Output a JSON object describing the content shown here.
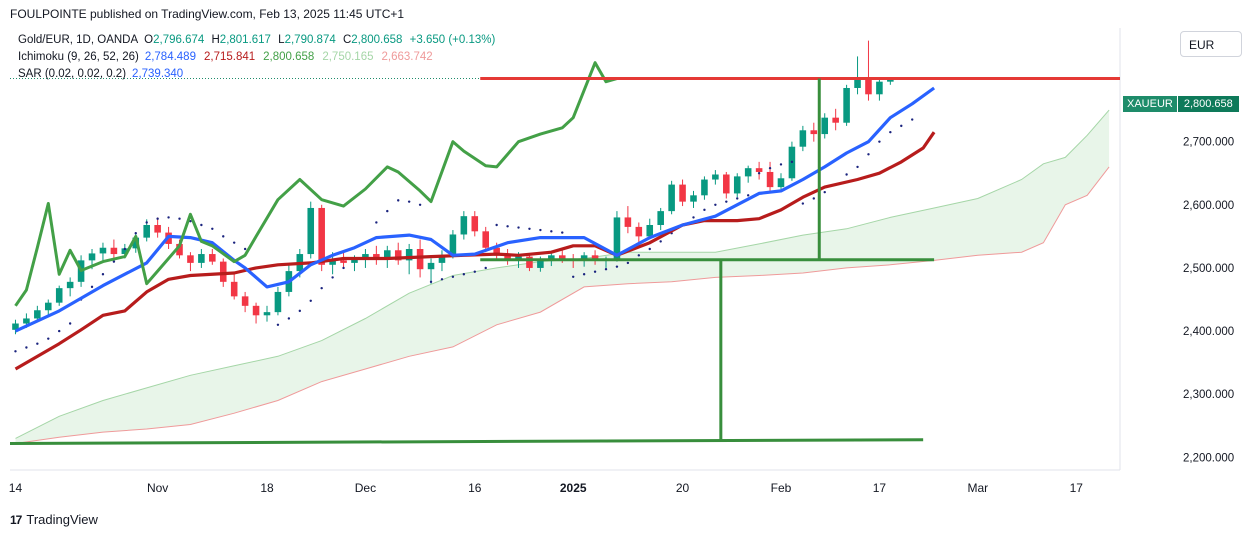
{
  "header": {
    "publisher_line": "FOULPOINTE published on TradingView.com, Feb 13, 2025 11:45 UTC+1"
  },
  "legend": {
    "symbol_line": {
      "name": "Gold/EUR, 1D, OANDA",
      "open_label": "O",
      "open": "2,796.674",
      "high_label": "H",
      "high": "2,801.617",
      "low_label": "L",
      "low": "2,790.874",
      "close_label": "C",
      "close": "2,800.658",
      "change": "+3.650 (+0.13%)"
    },
    "ichimoku": {
      "name": "Ichimoku (9, 26, 52, 26)",
      "values": [
        "2,784.489",
        "2,715.841",
        "2,800.658",
        "2,750.165",
        "2,663.742"
      ]
    },
    "sar": {
      "name": "SAR (0.02, 0.02, 0.2)",
      "value": "2,739.340"
    }
  },
  "currency_button": "EUR",
  "price_tag": {
    "symbol": "XAUEUR",
    "value": "2,800.658"
  },
  "footer": {
    "logo_text": "17",
    "brand": "TradingView"
  },
  "colors": {
    "up": "#089981",
    "down": "#f23645",
    "tenkan": "#2962ff",
    "kijun": "#b71c1c",
    "chikou": "#43a047",
    "span_a": "#a5d6a7",
    "span_b": "#ef9a9a",
    "cloud": "#e8f5e9",
    "sar": "#1a237e",
    "drawing_green": "#388e3c",
    "drawing_red": "#e53935"
  },
  "chart_data": {
    "type": "candlestick",
    "y_axis": {
      "ticks": [
        "2,700.000",
        "2,600.000",
        "2,500.000",
        "2,400.000",
        "2,300.000",
        "2,200.000"
      ],
      "tick_values": [
        2700,
        2600,
        2500,
        2400,
        2300,
        2200
      ],
      "range": [
        2180,
        2880
      ]
    },
    "x_axis": {
      "ticks": [
        "14",
        "Nov",
        "18",
        "Dec",
        "16",
        "2025",
        "20",
        "Feb",
        "17",
        "Mar",
        "17"
      ],
      "tick_bars": [
        0,
        13,
        23,
        32,
        42,
        51,
        61,
        70,
        79,
        88,
        97
      ],
      "bar_range": [
        -0.5,
        101
      ]
    },
    "ohlc": [
      [
        2402,
        2418,
        2395,
        2412
      ],
      [
        2412,
        2428,
        2405,
        2420
      ],
      [
        2420,
        2440,
        2415,
        2433
      ],
      [
        2433,
        2450,
        2425,
        2445
      ],
      [
        2445,
        2472,
        2440,
        2468
      ],
      [
        2468,
        2485,
        2455,
        2478
      ],
      [
        2478,
        2520,
        2470,
        2512
      ],
      [
        2512,
        2530,
        2498,
        2523
      ],
      [
        2523,
        2540,
        2510,
        2532
      ],
      [
        2532,
        2545,
        2514,
        2522
      ],
      [
        2522,
        2538,
        2515,
        2531
      ],
      [
        2531,
        2555,
        2524,
        2548
      ],
      [
        2548,
        2577,
        2542,
        2568
      ],
      [
        2568,
        2580,
        2548,
        2556
      ],
      [
        2556,
        2565,
        2530,
        2538
      ],
      [
        2538,
        2545,
        2515,
        2520
      ],
      [
        2520,
        2525,
        2495,
        2508
      ],
      [
        2508,
        2530,
        2500,
        2522
      ],
      [
        2522,
        2530,
        2505,
        2510
      ],
      [
        2510,
        2515,
        2470,
        2478
      ],
      [
        2478,
        2490,
        2450,
        2455
      ],
      [
        2455,
        2462,
        2430,
        2440
      ],
      [
        2440,
        2445,
        2412,
        2425
      ],
      [
        2425,
        2440,
        2415,
        2430
      ],
      [
        2430,
        2470,
        2425,
        2462
      ],
      [
        2462,
        2505,
        2455,
        2495
      ],
      [
        2495,
        2530,
        2485,
        2522
      ],
      [
        2522,
        2605,
        2515,
        2595
      ],
      [
        2595,
        2600,
        2495,
        2505
      ],
      [
        2505,
        2525,
        2490,
        2512
      ],
      [
        2512,
        2528,
        2500,
        2508
      ],
      [
        2508,
        2520,
        2495,
        2516
      ],
      [
        2516,
        2530,
        2500,
        2522
      ],
      [
        2522,
        2535,
        2505,
        2515
      ],
      [
        2515,
        2535,
        2500,
        2528
      ],
      [
        2528,
        2540,
        2505,
        2512
      ],
      [
        2512,
        2538,
        2490,
        2530
      ],
      [
        2530,
        2545,
        2485,
        2498
      ],
      [
        2498,
        2515,
        2475,
        2508
      ],
      [
        2508,
        2528,
        2495,
        2520
      ],
      [
        2520,
        2560,
        2515,
        2553
      ],
      [
        2553,
        2590,
        2545,
        2582
      ],
      [
        2582,
        2590,
        2550,
        2558
      ],
      [
        2558,
        2565,
        2525,
        2532
      ],
      [
        2532,
        2540,
        2515,
        2522
      ],
      [
        2522,
        2530,
        2505,
        2512
      ],
      [
        2512,
        2525,
        2500,
        2518
      ],
      [
        2518,
        2522,
        2495,
        2500
      ],
      [
        2500,
        2518,
        2494,
        2512
      ],
      [
        2512,
        2524,
        2503,
        2520
      ],
      [
        2520,
        2530,
        2508,
        2515
      ],
      [
        2515,
        2522,
        2500,
        2512
      ],
      [
        2512,
        2525,
        2502,
        2520
      ],
      [
        2520,
        2528,
        2505,
        2512
      ],
      [
        2512,
        2518,
        2500,
        2515
      ],
      [
        2515,
        2590,
        2510,
        2580
      ],
      [
        2580,
        2598,
        2555,
        2565
      ],
      [
        2565,
        2572,
        2540,
        2550
      ],
      [
        2550,
        2578,
        2545,
        2568
      ],
      [
        2568,
        2595,
        2560,
        2590
      ],
      [
        2590,
        2638,
        2585,
        2632
      ],
      [
        2632,
        2640,
        2598,
        2605
      ],
      [
        2605,
        2622,
        2595,
        2615
      ],
      [
        2615,
        2645,
        2608,
        2640
      ],
      [
        2640,
        2655,
        2632,
        2648
      ],
      [
        2648,
        2652,
        2610,
        2618
      ],
      [
        2618,
        2650,
        2612,
        2645
      ],
      [
        2645,
        2662,
        2635,
        2658
      ],
      [
        2658,
        2668,
        2640,
        2652
      ],
      [
        2652,
        2668,
        2618,
        2628
      ],
      [
        2628,
        2650,
        2620,
        2642
      ],
      [
        2642,
        2700,
        2638,
        2692
      ],
      [
        2692,
        2725,
        2685,
        2718
      ],
      [
        2718,
        2730,
        2700,
        2712
      ],
      [
        2712,
        2745,
        2705,
        2738
      ],
      [
        2738,
        2752,
        2718,
        2730
      ],
      [
        2730,
        2790,
        2725,
        2785
      ],
      [
        2785,
        2835,
        2775,
        2798
      ],
      [
        2798,
        2860,
        2765,
        2775
      ],
      [
        2775,
        2800,
        2765,
        2795
      ],
      [
        2795,
        2802,
        2790,
        2800
      ]
    ],
    "tenkan": [
      [
        0,
        2400
      ],
      [
        4,
        2432
      ],
      [
        8,
        2472
      ],
      [
        12,
        2508
      ],
      [
        14,
        2550
      ],
      [
        16,
        2548
      ],
      [
        18,
        2540
      ],
      [
        20,
        2512
      ],
      [
        21,
        2500
      ],
      [
        23,
        2470
      ],
      [
        25,
        2478
      ],
      [
        27,
        2505
      ],
      [
        29,
        2520
      ],
      [
        31,
        2532
      ],
      [
        33,
        2548
      ],
      [
        36,
        2552
      ],
      [
        38,
        2545
      ],
      [
        40,
        2520
      ],
      [
        42,
        2522
      ],
      [
        45,
        2540
      ],
      [
        48,
        2548
      ],
      [
        52,
        2548
      ],
      [
        55,
        2520
      ],
      [
        58,
        2548
      ],
      [
        61,
        2568
      ],
      [
        64,
        2582
      ],
      [
        66,
        2600
      ],
      [
        68,
        2618
      ],
      [
        70,
        2622
      ],
      [
        72,
        2640
      ],
      [
        74,
        2660
      ],
      [
        76,
        2682
      ],
      [
        78,
        2700
      ],
      [
        80,
        2738
      ],
      [
        82,
        2760
      ],
      [
        84,
        2785
      ]
    ],
    "kijun": [
      [
        0,
        2340
      ],
      [
        4,
        2380
      ],
      [
        6,
        2402
      ],
      [
        8,
        2425
      ],
      [
        10,
        2432
      ],
      [
        12,
        2462
      ],
      [
        14,
        2482
      ],
      [
        16,
        2488
      ],
      [
        20,
        2492
      ],
      [
        22,
        2500
      ],
      [
        24,
        2505
      ],
      [
        27,
        2508
      ],
      [
        30,
        2515
      ],
      [
        34,
        2515
      ],
      [
        38,
        2518
      ],
      [
        41,
        2520
      ],
      [
        44,
        2522
      ],
      [
        46,
        2520
      ],
      [
        49,
        2525
      ],
      [
        51,
        2535
      ],
      [
        53,
        2535
      ],
      [
        55,
        2520
      ],
      [
        58,
        2540
      ],
      [
        61,
        2568
      ],
      [
        63,
        2575
      ],
      [
        66,
        2575
      ],
      [
        68,
        2578
      ],
      [
        70,
        2592
      ],
      [
        72,
        2612
      ],
      [
        74,
        2628
      ],
      [
        77,
        2640
      ],
      [
        79,
        2650
      ],
      [
        81,
        2668
      ],
      [
        83,
        2690
      ],
      [
        84,
        2715
      ]
    ],
    "chikou": [
      [
        0,
        2440
      ],
      [
        1,
        2465
      ],
      [
        2,
        2532
      ],
      [
        3,
        2602
      ],
      [
        4,
        2490
      ],
      [
        5,
        2528
      ],
      [
        6,
        2496
      ],
      [
        8,
        2510
      ],
      [
        10,
        2518
      ],
      [
        11,
        2550
      ],
      [
        12,
        2475
      ],
      [
        13,
        2495
      ],
      [
        15,
        2535
      ],
      [
        16,
        2585
      ],
      [
        17,
        2542
      ],
      [
        18,
        2535
      ],
      [
        20,
        2510
      ],
      [
        21,
        2520
      ],
      [
        22,
        2550
      ],
      [
        24,
        2608
      ],
      [
        26,
        2640
      ],
      [
        28,
        2608
      ],
      [
        30,
        2598
      ],
      [
        32,
        2625
      ],
      [
        34,
        2660
      ],
      [
        35,
        2652
      ],
      [
        37,
        2622
      ],
      [
        38,
        2605
      ],
      [
        40,
        2700
      ],
      [
        41,
        2685
      ],
      [
        43,
        2662
      ],
      [
        44,
        2660
      ],
      [
        46,
        2700
      ],
      [
        48,
        2712
      ],
      [
        50,
        2722
      ],
      [
        51,
        2738
      ],
      [
        53,
        2825
      ],
      [
        54,
        2795
      ],
      [
        55,
        2800
      ],
      [
        56,
        2800
      ]
    ],
    "span_a": [
      [
        0,
        2230
      ],
      [
        4,
        2265
      ],
      [
        8,
        2290
      ],
      [
        12,
        2310
      ],
      [
        16,
        2330
      ],
      [
        20,
        2345
      ],
      [
        24,
        2360
      ],
      [
        28,
        2385
      ],
      [
        32,
        2420
      ],
      [
        36,
        2460
      ],
      [
        40,
        2488
      ],
      [
        44,
        2500
      ],
      [
        48,
        2510
      ],
      [
        52,
        2515
      ],
      [
        56,
        2525
      ],
      [
        60,
        2525
      ],
      [
        64,
        2525
      ],
      [
        68,
        2538
      ],
      [
        72,
        2552
      ],
      [
        76,
        2562
      ],
      [
        80,
        2580
      ],
      [
        84,
        2595
      ],
      [
        88,
        2610
      ],
      [
        92,
        2640
      ],
      [
        94,
        2665
      ],
      [
        96,
        2675
      ],
      [
        98,
        2710
      ],
      [
        100,
        2750
      ]
    ],
    "span_b": [
      [
        0,
        2222
      ],
      [
        4,
        2232
      ],
      [
        8,
        2240
      ],
      [
        12,
        2245
      ],
      [
        16,
        2252
      ],
      [
        20,
        2270
      ],
      [
        24,
        2290
      ],
      [
        28,
        2320
      ],
      [
        32,
        2340
      ],
      [
        36,
        2360
      ],
      [
        40,
        2375
      ],
      [
        44,
        2410
      ],
      [
        48,
        2430
      ],
      [
        52,
        2470
      ],
      [
        56,
        2475
      ],
      [
        60,
        2478
      ],
      [
        64,
        2485
      ],
      [
        68,
        2488
      ],
      [
        72,
        2492
      ],
      [
        76,
        2500
      ],
      [
        80,
        2505
      ],
      [
        84,
        2512
      ],
      [
        88,
        2520
      ],
      [
        92,
        2525
      ],
      [
        94,
        2540
      ],
      [
        96,
        2600
      ],
      [
        98,
        2615
      ],
      [
        100,
        2660
      ]
    ],
    "sar": [
      [
        0,
        2368
      ],
      [
        1,
        2374
      ],
      [
        2,
        2380
      ],
      [
        3,
        2388
      ],
      [
        4,
        2400
      ],
      [
        5,
        2412
      ],
      [
        6,
        2450
      ],
      [
        7,
        2470
      ],
      [
        8,
        2490
      ],
      [
        9,
        2510
      ],
      [
        10,
        2530
      ],
      [
        11,
        2555
      ],
      [
        12,
        2572
      ],
      [
        13,
        2578
      ],
      [
        14,
        2580
      ],
      [
        15,
        2578
      ],
      [
        16,
        2574
      ],
      [
        17,
        2568
      ],
      [
        18,
        2562
      ],
      [
        19,
        2550
      ],
      [
        20,
        2540
      ],
      [
        21,
        2530
      ],
      [
        24,
        2410
      ],
      [
        25,
        2420
      ],
      [
        26,
        2432
      ],
      [
        27,
        2448
      ],
      [
        28,
        2468
      ],
      [
        29,
        2485
      ],
      [
        30,
        2500
      ],
      [
        31,
        2515
      ],
      [
        32,
        2540
      ],
      [
        33,
        2572
      ],
      [
        34,
        2590
      ],
      [
        35,
        2607
      ],
      [
        36,
        2605
      ],
      [
        37,
        2600
      ],
      [
        38,
        2478
      ],
      [
        39,
        2482
      ],
      [
        40,
        2486
      ],
      [
        41,
        2490
      ],
      [
        42,
        2494
      ],
      [
        43,
        2500
      ],
      [
        44,
        2568
      ],
      [
        45,
        2566
      ],
      [
        46,
        2564
      ],
      [
        47,
        2562
      ],
      [
        48,
        2560
      ],
      [
        49,
        2558
      ],
      [
        50,
        2556
      ],
      [
        51,
        2486
      ],
      [
        52,
        2490
      ],
      [
        53,
        2494
      ],
      [
        54,
        2498
      ],
      [
        55,
        2502
      ],
      [
        56,
        2508
      ],
      [
        57,
        2520
      ],
      [
        58,
        2530
      ],
      [
        59,
        2542
      ],
      [
        60,
        2555
      ],
      [
        61,
        2568
      ],
      [
        62,
        2580
      ],
      [
        63,
        2592
      ],
      [
        64,
        2600
      ],
      [
        65,
        2605
      ],
      [
        66,
        2610
      ],
      [
        67,
        2615
      ],
      [
        68,
        2650
      ],
      [
        69,
        2658
      ],
      [
        70,
        2664
      ],
      [
        71,
        2668
      ],
      [
        72,
        2602
      ],
      [
        73,
        2610
      ],
      [
        74,
        2620
      ],
      [
        75,
        2632
      ],
      [
        76,
        2648
      ],
      [
        77,
        2660
      ],
      [
        78,
        2680
      ],
      [
        79,
        2700
      ],
      [
        80,
        2715
      ],
      [
        81,
        2725
      ],
      [
        82,
        2735
      ]
    ],
    "drawings": {
      "red_horizontal": {
        "y": 2800,
        "x_from": 42.5,
        "x_to": 101
      },
      "green_horizontal": {
        "y": 2513,
        "x_from": 42.5,
        "x_to": 84
      },
      "green_bottom": {
        "y_from": 2222,
        "y_to": 2228,
        "x_from": -0.5,
        "x_to": 83
      },
      "green_vertical_right": {
        "x": 73.5,
        "y_from": 2800,
        "y_to": 2513
      },
      "green_vertical_left": {
        "x": 64.5,
        "y_from": 2513,
        "y_to": 2228
      }
    }
  }
}
